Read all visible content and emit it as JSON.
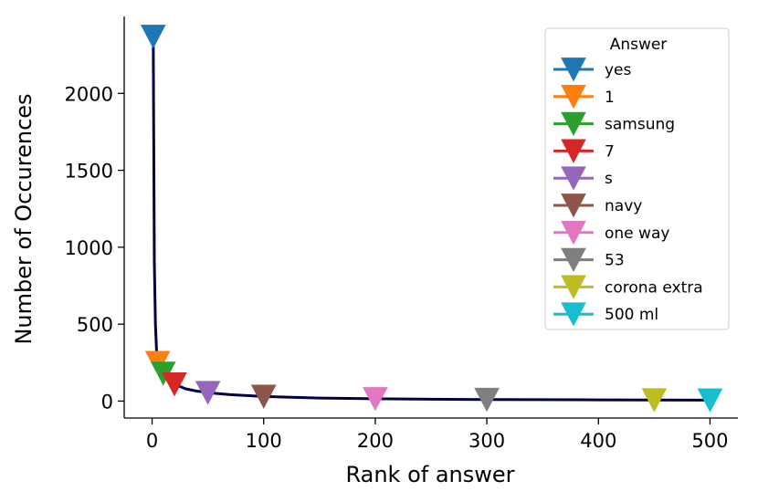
{
  "chart_data": {
    "type": "line",
    "xlabel": "Rank of answer",
    "ylabel": "Number of Occurences",
    "xlim": [
      -25,
      525
    ],
    "ylim": [
      -110,
      2500
    ],
    "xticks": [
      0,
      100,
      200,
      300,
      400,
      500
    ],
    "yticks": [
      0,
      500,
      1000,
      1500,
      2000
    ],
    "grid": false,
    "curve": {
      "color": "#000044",
      "x": [
        1,
        2,
        3,
        4,
        5,
        7,
        10,
        15,
        20,
        30,
        40,
        50,
        70,
        100,
        150,
        200,
        250,
        300,
        350,
        400,
        450,
        500
      ],
      "y": [
        2370,
        900,
        500,
        330,
        250,
        215,
        180,
        140,
        110,
        80,
        65,
        55,
        42,
        30,
        20,
        15,
        12,
        10,
        9,
        8,
        7,
        6
      ]
    },
    "legend": {
      "title": "Answer",
      "placement": "top-right",
      "entries": [
        {
          "name": "yes",
          "color": "#1f77b4",
          "x": 1,
          "y": 2370
        },
        {
          "name": "1",
          "color": "#ff7f0e",
          "x": 5,
          "y": 250
        },
        {
          "name": "samsung",
          "color": "#2ca02c",
          "x": 10,
          "y": 180
        },
        {
          "name": "7",
          "color": "#d62728",
          "x": 20,
          "y": 110
        },
        {
          "name": "s",
          "color": "#9467bd",
          "x": 50,
          "y": 55
        },
        {
          "name": "navy",
          "color": "#8c564b",
          "x": 100,
          "y": 30
        },
        {
          "name": "one way",
          "color": "#e377c2",
          "x": 200,
          "y": 15
        },
        {
          "name": "53",
          "color": "#7f7f7f",
          "x": 300,
          "y": 10
        },
        {
          "name": "corona extra",
          "color": "#bcbd22",
          "x": 450,
          "y": 7
        },
        {
          "name": "500 ml",
          "color": "#17becf",
          "x": 500,
          "y": 6
        }
      ]
    }
  }
}
